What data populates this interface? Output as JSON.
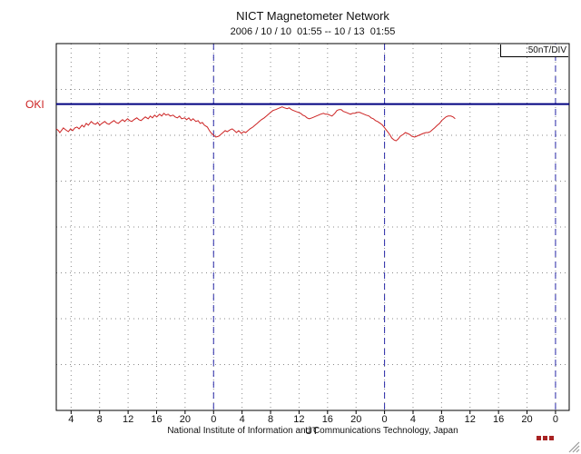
{
  "header": {
    "title": "NICT Magnetometer Network",
    "subtitle": "2006 / 10 / 10  01:55 -- 10 / 13  01:55"
  },
  "chart": {
    "station_label": "OKI",
    "scale_label": ":50nT/DIV",
    "x_axis_unit": "UT",
    "footer": "National Institute of Information and Communications Technology, Japan",
    "colors": {
      "trace": "#cc2222",
      "baseline": "#000080",
      "day_divider": "#2828a8",
      "grid": "#8a8a8a",
      "border": "#000000",
      "station_label": "#cc2020"
    }
  },
  "chart_data": {
    "type": "line",
    "title": "NICT Magnetometer Network",
    "station": "OKI",
    "x_start": "2006/10/10 01:55 UT",
    "x_end": "2006/10/13 01:55 UT",
    "x_range_hours": [
      0,
      72
    ],
    "xlabel": "UT",
    "x_tick_labels": [
      "4",
      "8",
      "12",
      "16",
      "20",
      "0",
      "4",
      "8",
      "12",
      "16",
      "20",
      "0",
      "4",
      "8",
      "12",
      "16",
      "20",
      "0"
    ],
    "x_tick_hours": [
      2.08,
      6.08,
      10.08,
      14.08,
      18.08,
      22.08,
      26.08,
      30.08,
      34.08,
      38.08,
      42.08,
      46.08,
      50.08,
      54.08,
      58.08,
      62.08,
      66.08,
      70.08
    ],
    "day_boundary_hours": [
      22.08,
      46.08,
      70.08
    ],
    "nT_per_division": 50,
    "y_divisions": 8,
    "ylim_nT": [
      -334,
      66
    ],
    "baseline_value": 0,
    "grid": true,
    "legend": false,
    "series": [
      {
        "name": "OKI H-component (nT, relative to baseline)",
        "points": [
          [
            0.0,
            -27
          ],
          [
            0.3,
            -29
          ],
          [
            0.5,
            -31
          ],
          [
            0.8,
            -28
          ],
          [
            1.0,
            -26
          ],
          [
            1.3,
            -28
          ],
          [
            1.7,
            -30
          ],
          [
            2.0,
            -27
          ],
          [
            2.3,
            -29
          ],
          [
            2.6,
            -26
          ],
          [
            2.9,
            -25
          ],
          [
            3.2,
            -27
          ],
          [
            3.6,
            -23
          ],
          [
            3.9,
            -25
          ],
          [
            4.2,
            -21
          ],
          [
            4.5,
            -23
          ],
          [
            4.9,
            -19
          ],
          [
            5.2,
            -21
          ],
          [
            5.5,
            -22
          ],
          [
            5.8,
            -20
          ],
          [
            6.1,
            -23
          ],
          [
            6.4,
            -21
          ],
          [
            6.8,
            -19
          ],
          [
            7.1,
            -21
          ],
          [
            7.4,
            -22
          ],
          [
            7.7,
            -20
          ],
          [
            8.1,
            -18
          ],
          [
            8.4,
            -20
          ],
          [
            8.7,
            -21
          ],
          [
            9.0,
            -19
          ],
          [
            9.3,
            -17
          ],
          [
            9.6,
            -19
          ],
          [
            10.0,
            -16
          ],
          [
            10.3,
            -18
          ],
          [
            10.6,
            -19
          ],
          [
            10.9,
            -17
          ],
          [
            11.3,
            -15
          ],
          [
            11.6,
            -17
          ],
          [
            11.9,
            -18
          ],
          [
            12.2,
            -16
          ],
          [
            12.5,
            -14
          ],
          [
            12.9,
            -16
          ],
          [
            13.2,
            -13
          ],
          [
            13.5,
            -15
          ],
          [
            13.8,
            -12
          ],
          [
            14.1,
            -14
          ],
          [
            14.5,
            -11
          ],
          [
            14.8,
            -13
          ],
          [
            15.1,
            -10
          ],
          [
            15.4,
            -12
          ],
          [
            15.7,
            -11
          ],
          [
            16.0,
            -13
          ],
          [
            16.4,
            -12
          ],
          [
            16.7,
            -14
          ],
          [
            17.0,
            -15
          ],
          [
            17.3,
            -13
          ],
          [
            17.6,
            -16
          ],
          [
            18.0,
            -15
          ],
          [
            18.3,
            -17
          ],
          [
            18.6,
            -15
          ],
          [
            18.9,
            -18
          ],
          [
            19.2,
            -16
          ],
          [
            19.6,
            -19
          ],
          [
            19.9,
            -18
          ],
          [
            20.2,
            -21
          ],
          [
            20.5,
            -20
          ],
          [
            20.8,
            -23
          ],
          [
            21.2,
            -25
          ],
          [
            21.5,
            -29
          ],
          [
            21.8,
            -32
          ],
          [
            22.1,
            -34
          ],
          [
            22.4,
            -36
          ],
          [
            22.8,
            -35
          ],
          [
            23.1,
            -33
          ],
          [
            23.4,
            -31
          ],
          [
            23.7,
            -29
          ],
          [
            24.0,
            -30
          ],
          [
            24.4,
            -28
          ],
          [
            24.7,
            -27
          ],
          [
            25.0,
            -29
          ],
          [
            25.3,
            -31
          ],
          [
            25.6,
            -29
          ],
          [
            26.0,
            -32
          ],
          [
            26.3,
            -30
          ],
          [
            26.6,
            -31
          ],
          [
            26.9,
            -29
          ],
          [
            27.2,
            -27
          ],
          [
            27.6,
            -25
          ],
          [
            27.9,
            -23
          ],
          [
            28.2,
            -21
          ],
          [
            28.5,
            -19
          ],
          [
            28.8,
            -17
          ],
          [
            29.2,
            -15
          ],
          [
            29.5,
            -13
          ],
          [
            29.8,
            -11
          ],
          [
            30.1,
            -9
          ],
          [
            30.4,
            -7
          ],
          [
            30.8,
            -6
          ],
          [
            31.1,
            -5
          ],
          [
            31.4,
            -4
          ],
          [
            31.7,
            -3
          ],
          [
            32.0,
            -4
          ],
          [
            32.4,
            -5
          ],
          [
            32.7,
            -4
          ],
          [
            33.0,
            -6
          ],
          [
            33.3,
            -7
          ],
          [
            33.6,
            -8
          ],
          [
            34.0,
            -9
          ],
          [
            34.3,
            -10
          ],
          [
            34.6,
            -12
          ],
          [
            34.9,
            -13
          ],
          [
            35.2,
            -15
          ],
          [
            35.5,
            -16
          ],
          [
            35.9,
            -15
          ],
          [
            36.2,
            -14
          ],
          [
            36.5,
            -13
          ],
          [
            36.8,
            -12
          ],
          [
            37.1,
            -11
          ],
          [
            37.5,
            -10
          ],
          [
            37.8,
            -11
          ],
          [
            38.1,
            -11
          ],
          [
            38.4,
            -12
          ],
          [
            38.7,
            -13
          ],
          [
            39.1,
            -10
          ],
          [
            39.4,
            -7
          ],
          [
            39.7,
            -6
          ],
          [
            40.0,
            -6
          ],
          [
            40.3,
            -8
          ],
          [
            40.7,
            -9
          ],
          [
            41.0,
            -10
          ],
          [
            41.3,
            -11
          ],
          [
            41.6,
            -10
          ],
          [
            41.9,
            -10
          ],
          [
            42.3,
            -9
          ],
          [
            42.6,
            -9
          ],
          [
            42.9,
            -10
          ],
          [
            43.2,
            -11
          ],
          [
            43.5,
            -12
          ],
          [
            43.9,
            -13
          ],
          [
            44.2,
            -15
          ],
          [
            44.5,
            -16
          ],
          [
            44.8,
            -18
          ],
          [
            45.1,
            -19
          ],
          [
            45.5,
            -21
          ],
          [
            45.8,
            -23
          ],
          [
            46.1,
            -26
          ],
          [
            46.4,
            -29
          ],
          [
            46.8,
            -33
          ],
          [
            47.1,
            -37
          ],
          [
            47.4,
            -39
          ],
          [
            47.7,
            -40
          ],
          [
            48.0,
            -38
          ],
          [
            48.3,
            -35
          ],
          [
            48.7,
            -33
          ],
          [
            49.0,
            -31
          ],
          [
            49.3,
            -32
          ],
          [
            49.6,
            -33
          ],
          [
            49.9,
            -35
          ],
          [
            50.3,
            -36
          ],
          [
            50.6,
            -35
          ],
          [
            50.9,
            -34
          ],
          [
            51.2,
            -33
          ],
          [
            51.5,
            -32
          ],
          [
            51.9,
            -31
          ],
          [
            52.2,
            -31
          ],
          [
            52.5,
            -30
          ],
          [
            52.8,
            -28
          ],
          [
            53.1,
            -26
          ],
          [
            53.5,
            -23
          ],
          [
            53.8,
            -21
          ],
          [
            54.1,
            -18
          ],
          [
            54.4,
            -16
          ],
          [
            54.7,
            -14
          ],
          [
            55.0,
            -13
          ],
          [
            55.4,
            -13
          ],
          [
            55.7,
            -14
          ],
          [
            56.0,
            -16
          ]
        ]
      }
    ]
  }
}
